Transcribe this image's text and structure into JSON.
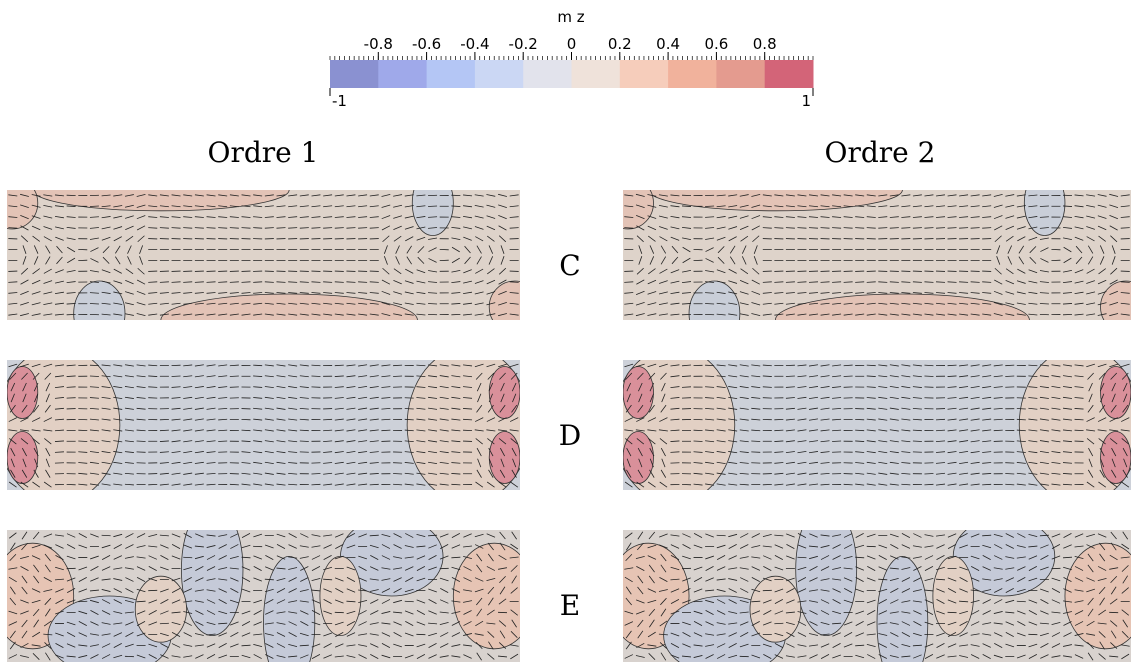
{
  "colorbar": {
    "title": "m z",
    "lim": [
      -1,
      1
    ],
    "ticks": [
      -0.8,
      -0.6,
      -0.4,
      -0.2,
      0,
      0.2,
      0.4,
      0.6,
      0.8
    ],
    "colors": [
      "#8a91d1",
      "#9fa9ea",
      "#b4c6f5",
      "#cbd7f4",
      "#e2e3ec",
      "#efe2da",
      "#f6cdbb",
      "#f1b29c",
      "#e49b8f",
      "#d36478"
    ]
  },
  "columns": [
    "Ordre 1",
    "Ordre 2"
  ],
  "rows": [
    "C",
    "D",
    "E"
  ]
}
